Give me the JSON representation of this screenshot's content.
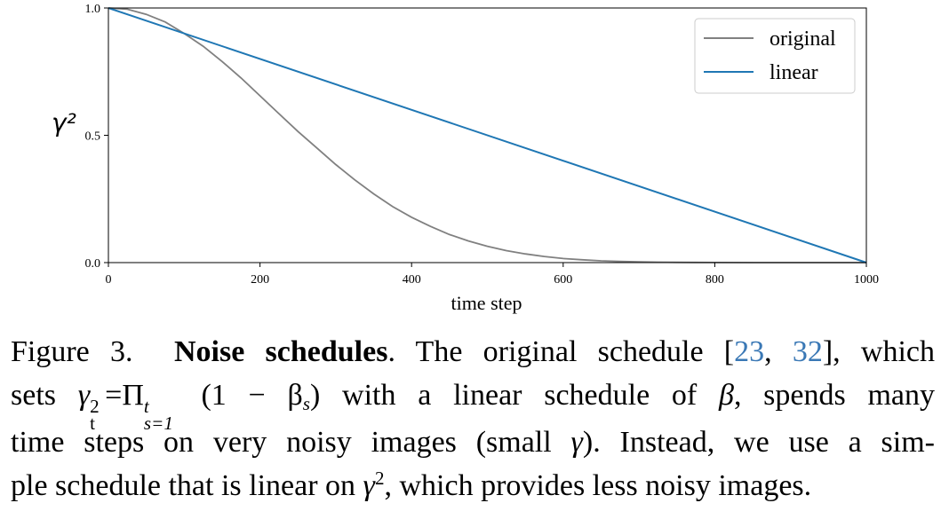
{
  "chart_data": {
    "type": "line",
    "xlabel": "time step",
    "ylabel": "γ²",
    "xlim": [
      0,
      1000
    ],
    "ylim": [
      0,
      1
    ],
    "x_ticks": [
      "0",
      "200",
      "400",
      "600",
      "800",
      "1000"
    ],
    "y_ticks": [
      "0.0",
      "0.5",
      "1.0"
    ],
    "grid": false,
    "legend_position": "top-right",
    "series": [
      {
        "name": "original",
        "color": "#808080",
        "x": [
          0,
          25,
          50,
          75,
          100,
          125,
          150,
          175,
          200,
          225,
          250,
          275,
          300,
          325,
          350,
          375,
          400,
          425,
          450,
          475,
          500,
          525,
          550,
          575,
          600,
          625,
          650,
          675,
          700,
          725,
          750,
          775,
          800,
          850,
          900,
          950,
          1000
        ],
        "values": [
          1.0,
          0.995,
          0.975,
          0.945,
          0.9,
          0.85,
          0.79,
          0.725,
          0.655,
          0.585,
          0.515,
          0.45,
          0.385,
          0.325,
          0.27,
          0.22,
          0.178,
          0.142,
          0.11,
          0.085,
          0.064,
          0.047,
          0.034,
          0.024,
          0.016,
          0.011,
          0.007,
          0.0045,
          0.003,
          0.0018,
          0.0011,
          0.0006,
          0.0003,
          0.0001,
          0.0,
          0.0,
          0.0
        ]
      },
      {
        "name": "linear",
        "color": "#1f77b4",
        "x": [
          0,
          1000
        ],
        "values": [
          1.0,
          0.0
        ]
      }
    ]
  },
  "caption": {
    "label": "Figure 3.",
    "title": "Noise schedules",
    "line1_rest": ". The original schedule [",
    "cite1": "23",
    "cite_sep": ", ",
    "cite2": "32",
    "line1_end": "], which",
    "line2_a": "sets ",
    "line2_b": " with a linear schedule of ",
    "line2_c": ", spends many",
    "line3": "time steps on very noisy images (small ",
    "line3_end": "). Instead, we use a sim-",
    "line4_a": "ple schedule that is linear on ",
    "line4_b": ", which provides less noisy images.",
    "math_gamma": "γ",
    "math_beta": "β",
    "math_sup2": "2",
    "math_sub_t": "t",
    "math_eq_prod": "=Π",
    "math_prod_sub": "s=1",
    "math_prod_sup": "t",
    "math_paren": "(1 − β",
    "math_sub_s": "s",
    "math_close": ")"
  }
}
